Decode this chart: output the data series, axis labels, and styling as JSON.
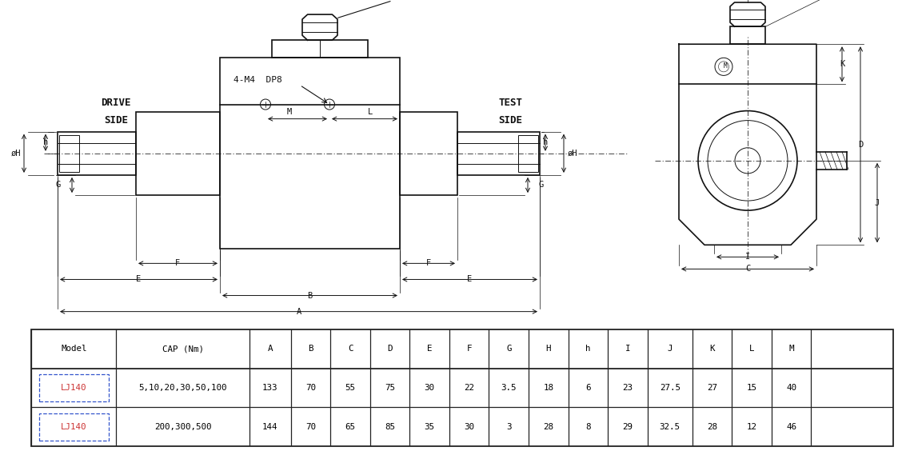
{
  "bg_color": "#ffffff",
  "table": {
    "headers": [
      "Model",
      "CAP (Nm)",
      "A",
      "B",
      "C",
      "D",
      "E",
      "F",
      "G",
      "H",
      "h",
      "I",
      "J",
      "K",
      "L",
      "M"
    ],
    "rows": [
      [
        "LJ140",
        "5,10,20,30,50,100",
        "133",
        "70",
        "55",
        "75",
        "30",
        "22",
        "3.5",
        "18",
        "6",
        "23",
        "27.5",
        "27",
        "15",
        "40"
      ],
      [
        "LJ140",
        "200,300,500",
        "144",
        "70",
        "65",
        "85",
        "35",
        "30",
        "3",
        "28",
        "8",
        "29",
        "32.5",
        "28",
        "12",
        "46"
      ]
    ]
  }
}
